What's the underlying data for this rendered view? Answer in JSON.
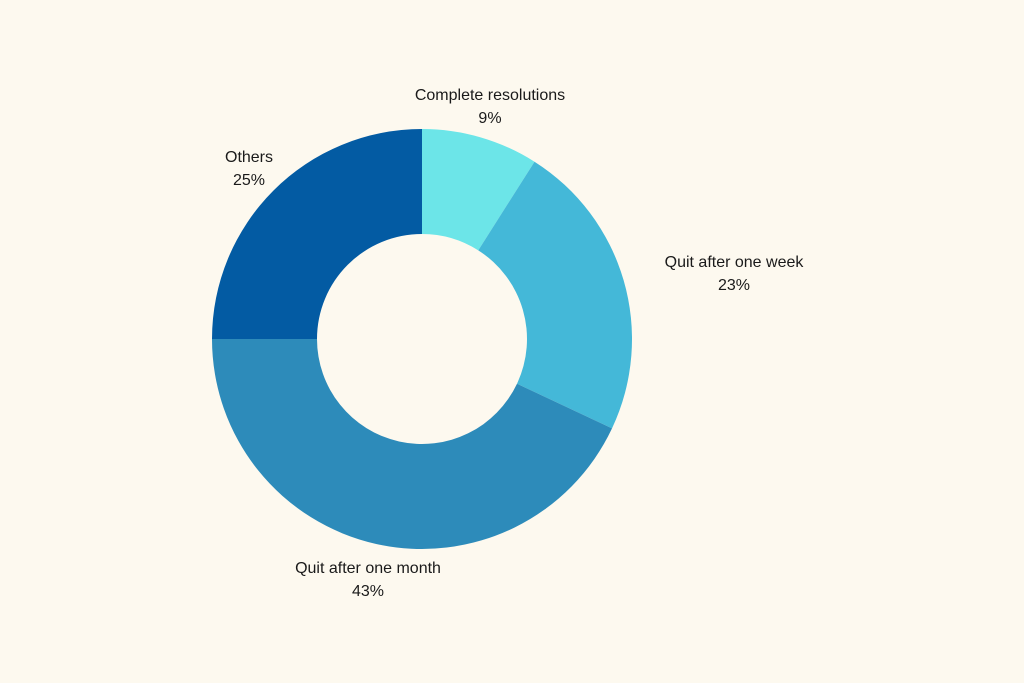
{
  "chart_data": {
    "type": "pie",
    "variant": "donut",
    "start_angle_deg": 0,
    "direction": "clockwise",
    "legend": "none",
    "slices": [
      {
        "label": "Complete resolutions",
        "value": 9,
        "value_label": "9%",
        "color": "#6ce5e8"
      },
      {
        "label": "Quit after one week",
        "value": 23,
        "value_label": "23%",
        "color": "#44b8d8"
      },
      {
        "label": "Quit after one month",
        "value": 43,
        "value_label": "43%",
        "color": "#2d8bba"
      },
      {
        "label": "Others",
        "value": 25,
        "value_label": "25%",
        "color": "#035ba3"
      }
    ]
  },
  "colors": {
    "background": "#fdf9ef",
    "label_text": "#1a1a1a"
  }
}
